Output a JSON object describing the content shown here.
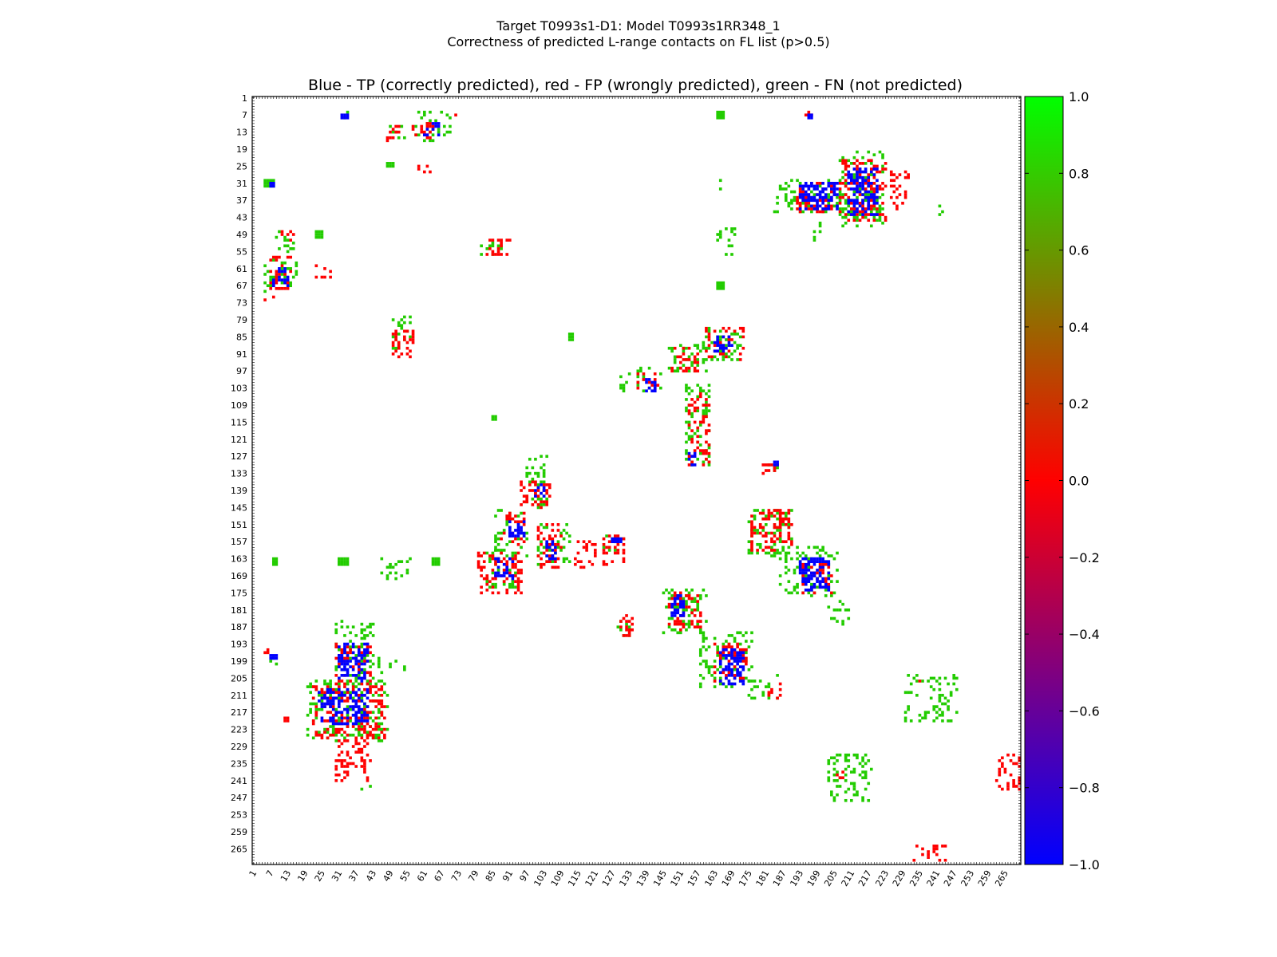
{
  "figure": {
    "title_line1": "Target T0993s1-D1: Model T0993s1RR348_1",
    "title_line2": "Correctness of predicted L-range contacts on FL list (p>0.5)"
  },
  "chart_data": {
    "type": "heatmap",
    "title": "Blue - TP (correctly predicted), red - FP (wrongly predicted), green - FN (not predicted)",
    "xlabel": "",
    "ylabel": "",
    "xlim": [
      1,
      270
    ],
    "ylim": [
      1,
      270
    ],
    "y_inverted": true,
    "x_tick_labels": [
      "1",
      "7",
      "13",
      "19",
      "25",
      "31",
      "37",
      "43",
      "49",
      "55",
      "61",
      "67",
      "73",
      "79",
      "85",
      "91",
      "97",
      "103",
      "109",
      "115",
      "121",
      "127",
      "133",
      "139",
      "145",
      "151",
      "157",
      "163",
      "169",
      "175",
      "181",
      "187",
      "193",
      "199",
      "205",
      "211",
      "217",
      "223",
      "229",
      "235",
      "241",
      "247",
      "253",
      "259",
      "265"
    ],
    "y_tick_labels": [
      "1",
      "7",
      "13",
      "19",
      "25",
      "31",
      "37",
      "43",
      "49",
      "55",
      "61",
      "67",
      "73",
      "79",
      "85",
      "91",
      "97",
      "103",
      "109",
      "115",
      "121",
      "127",
      "133",
      "139",
      "145",
      "151",
      "157",
      "163",
      "169",
      "175",
      "181",
      "187",
      "193",
      "199",
      "205",
      "211",
      "217",
      "223",
      "229",
      "235",
      "241",
      "247",
      "253",
      "259",
      "265"
    ],
    "colorbar": {
      "min": -1.0,
      "max": 1.0,
      "tick_labels": [
        "1.0",
        "0.8",
        "0.6",
        "0.4",
        "0.2",
        "0.0",
        "−0.2",
        "−0.4",
        "−0.6",
        "−0.8",
        "−1.0"
      ],
      "colors": [
        "#0000ff",
        "#ff0000",
        "#00ff00"
      ]
    },
    "legend": {
      "TP": "#0000ff",
      "FP": "#ff0000",
      "FN": "#22cc00"
    },
    "clusters": [
      {
        "cls": "FN",
        "r": [
          5,
          8
        ],
        "c": [
          32,
          35
        ]
      },
      {
        "cls": "TP",
        "r": [
          7,
          8
        ],
        "c": [
          32,
          34
        ]
      },
      {
        "cls": "FP",
        "r": [
          11,
          16
        ],
        "c": [
          48,
          52
        ]
      },
      {
        "cls": "FN",
        "r": [
          11,
          16
        ],
        "c": [
          49,
          55
        ]
      },
      {
        "cls": "FP",
        "r": [
          10,
          15
        ],
        "c": [
          57,
          64
        ]
      },
      {
        "cls": "TP",
        "r": [
          10,
          14
        ],
        "c": [
          61,
          66
        ]
      },
      {
        "cls": "FN",
        "r": [
          6,
          16
        ],
        "c": [
          58,
          70
        ]
      },
      {
        "cls": "FP",
        "r": [
          5,
          8
        ],
        "c": [
          71,
          73
        ]
      },
      {
        "cls": "FP",
        "r": [
          24,
          27
        ],
        "c": [
          59,
          63
        ]
      },
      {
        "cls": "FN",
        "r": [
          24,
          25
        ],
        "c": [
          48,
          50
        ]
      },
      {
        "cls": "FN",
        "r": [
          30,
          32
        ],
        "c": [
          5,
          8
        ]
      },
      {
        "cls": "TP",
        "r": [
          31,
          32
        ],
        "c": [
          7,
          8
        ]
      },
      {
        "cls": "FP",
        "r": [
          48,
          51
        ],
        "c": [
          11,
          15
        ]
      },
      {
        "cls": "FN",
        "r": [
          48,
          55
        ],
        "c": [
          9,
          16
        ]
      },
      {
        "cls": "FN",
        "r": [
          48,
          50
        ],
        "c": [
          23,
          25
        ]
      },
      {
        "cls": "FP",
        "r": [
          57,
          68
        ],
        "c": [
          7,
          14
        ]
      },
      {
        "cls": "TP",
        "r": [
          61,
          67
        ],
        "c": [
          8,
          13
        ]
      },
      {
        "cls": "FN",
        "r": [
          58,
          69
        ],
        "c": [
          5,
          16
        ]
      },
      {
        "cls": "FP",
        "r": [
          60,
          64
        ],
        "c": [
          23,
          28
        ]
      },
      {
        "cls": "FP",
        "r": [
          71,
          72
        ],
        "c": [
          5,
          10
        ]
      },
      {
        "cls": "FP",
        "r": [
          51,
          56
        ],
        "c": [
          83,
          91
        ]
      },
      {
        "cls": "FN",
        "r": [
          52,
          56
        ],
        "c": [
          80,
          88
        ]
      },
      {
        "cls": "FP",
        "r": [
          83,
          92
        ],
        "c": [
          50,
          57
        ]
      },
      {
        "cls": "FN",
        "r": [
          78,
          90
        ],
        "c": [
          50,
          56
        ]
      },
      {
        "cls": "FP",
        "r": [
          4,
          7
        ],
        "c": [
          195,
          197
        ]
      },
      {
        "cls": "TP",
        "r": [
          7,
          8
        ],
        "c": [
          196,
          197
        ]
      },
      {
        "cls": "FN",
        "r": [
          6,
          8
        ],
        "c": [
          164,
          166
        ]
      },
      {
        "cls": "FN",
        "r": [
          30,
          33
        ],
        "c": [
          164,
          165
        ]
      },
      {
        "cls": "FP",
        "r": [
          31,
          41
        ],
        "c": [
          192,
          207
        ]
      },
      {
        "cls": "TP",
        "r": [
          31,
          40
        ],
        "c": [
          193,
          206
        ]
      },
      {
        "cls": "FN",
        "r": [
          30,
          41
        ],
        "c": [
          184,
          209
        ]
      },
      {
        "cls": "FP",
        "r": [
          23,
          44
        ],
        "c": [
          208,
          223
        ]
      },
      {
        "cls": "TP",
        "r": [
          26,
          42
        ],
        "c": [
          210,
          220
        ]
      },
      {
        "cls": "FN",
        "r": [
          20,
          46
        ],
        "c": [
          207,
          222
        ]
      },
      {
        "cls": "FP",
        "r": [
          27,
          40
        ],
        "c": [
          225,
          231
        ]
      },
      {
        "cls": "FN",
        "r": [
          39,
          42
        ],
        "c": [
          242,
          243
        ]
      },
      {
        "cls": "FN",
        "r": [
          47,
          56
        ],
        "c": [
          164,
          170
        ]
      },
      {
        "cls": "FN",
        "r": [
          45,
          55
        ],
        "c": [
          198,
          202
        ]
      },
      {
        "cls": "FN",
        "r": [
          66,
          68
        ],
        "c": [
          164,
          166
        ]
      },
      {
        "cls": "FP",
        "r": [
          82,
          93
        ],
        "c": [
          160,
          173
        ]
      },
      {
        "cls": "TP",
        "r": [
          85,
          90
        ],
        "c": [
          163,
          169
        ]
      },
      {
        "cls": "FN",
        "r": [
          82,
          93
        ],
        "c": [
          159,
          172
        ]
      },
      {
        "cls": "FP",
        "r": [
          89,
          97
        ],
        "c": [
          148,
          157
        ]
      },
      {
        "cls": "FN",
        "r": [
          88,
          97
        ],
        "c": [
          147,
          160
        ]
      },
      {
        "cls": "FP",
        "r": [
          98,
          104
        ],
        "c": [
          136,
          143
        ]
      },
      {
        "cls": "TP",
        "r": [
          100,
          104
        ],
        "c": [
          138,
          142
        ]
      },
      {
        "cls": "FN",
        "r": [
          96,
          104
        ],
        "c": [
          130,
          144
        ]
      },
      {
        "cls": "FP",
        "r": [
          105,
          130
        ],
        "c": [
          154,
          161
        ]
      },
      {
        "cls": "TP",
        "r": [
          126,
          130
        ],
        "c": [
          154,
          156
        ]
      },
      {
        "cls": "FN",
        "r": [
          102,
          130
        ],
        "c": [
          153,
          161
        ]
      },
      {
        "cls": "FN",
        "r": [
          84,
          86
        ],
        "c": [
          112,
          113
        ]
      },
      {
        "cls": "FN",
        "r": [
          113,
          114
        ],
        "c": [
          85,
          86
        ]
      },
      {
        "cls": "FP",
        "r": [
          130,
          133
        ],
        "c": [
          180,
          185
        ]
      },
      {
        "cls": "FN",
        "r": [
          129,
          132
        ],
        "c": [
          182,
          186
        ]
      },
      {
        "cls": "TP",
        "r": [
          129,
          130
        ],
        "c": [
          184,
          185
        ]
      },
      {
        "cls": "FP",
        "r": [
          136,
          145
        ],
        "c": [
          95,
          105
        ]
      },
      {
        "cls": "TP",
        "r": [
          137,
          141
        ],
        "c": [
          100,
          103
        ]
      },
      {
        "cls": "FN",
        "r": [
          127,
          145
        ],
        "c": [
          97,
          104
        ]
      },
      {
        "cls": "FP",
        "r": [
          147,
          159
        ],
        "c": [
          88,
          96
        ]
      },
      {
        "cls": "TP",
        "r": [
          150,
          155
        ],
        "c": [
          91,
          96
        ]
      },
      {
        "cls": "FN",
        "r": [
          146,
          162
        ],
        "c": [
          85,
          97
        ]
      },
      {
        "cls": "FP",
        "r": [
          151,
          166
        ],
        "c": [
          101,
          109
        ]
      },
      {
        "cls": "TP",
        "r": [
          156,
          163
        ],
        "c": [
          104,
          107
        ]
      },
      {
        "cls": "FN",
        "r": [
          151,
          166
        ],
        "c": [
          101,
          112
        ]
      },
      {
        "cls": "FP",
        "r": [
          157,
          166
        ],
        "c": [
          114,
          121
        ]
      },
      {
        "cls": "FP",
        "r": [
          155,
          166
        ],
        "c": [
          124,
          131
        ]
      },
      {
        "cls": "TP",
        "r": [
          156,
          157
        ],
        "c": [
          127,
          130
        ]
      },
      {
        "cls": "FN",
        "r": [
          155,
          160
        ],
        "c": [
          124,
          131
        ]
      },
      {
        "cls": "FP",
        "r": [
          146,
          160
        ],
        "c": [
          176,
          190
        ]
      },
      {
        "cls": "FN",
        "r": [
          146,
          162
        ],
        "c": [
          175,
          190
        ]
      },
      {
        "cls": "TP",
        "r": [
          163,
          174
        ],
        "c": [
          193,
          203
        ]
      },
      {
        "cls": "FP",
        "r": [
          164,
          175
        ],
        "c": [
          194,
          204
        ]
      },
      {
        "cls": "FN",
        "r": [
          159,
          176
        ],
        "c": [
          186,
          206
        ]
      },
      {
        "cls": "FN",
        "r": [
          178,
          186
        ],
        "c": [
          203,
          210
        ]
      },
      {
        "cls": "FP",
        "r": [
          161,
          175
        ],
        "c": [
          80,
          95
        ]
      },
      {
        "cls": "TP",
        "r": [
          163,
          170
        ],
        "c": [
          86,
          92
        ]
      },
      {
        "cls": "FN",
        "r": [
          160,
          173
        ],
        "c": [
          83,
          94
        ]
      },
      {
        "cls": "FN",
        "r": [
          163,
          170
        ],
        "c": [
          46,
          56
        ]
      },
      {
        "cls": "FN",
        "r": [
          163,
          165
        ],
        "c": [
          8,
          9
        ]
      },
      {
        "cls": "FN",
        "r": [
          163,
          165
        ],
        "c": [
          31,
          34
        ]
      },
      {
        "cls": "FN",
        "r": [
          163,
          165
        ],
        "c": [
          64,
          66
        ]
      },
      {
        "cls": "FP",
        "r": [
          175,
          188
        ],
        "c": [
          147,
          158
        ]
      },
      {
        "cls": "TP",
        "r": [
          176,
          183
        ],
        "c": [
          148,
          152
        ]
      },
      {
        "cls": "FN",
        "r": [
          174,
          189
        ],
        "c": [
          145,
          160
        ]
      },
      {
        "cls": "FP",
        "r": [
          183,
          190
        ],
        "c": [
          130,
          134
        ]
      },
      {
        "cls": "FN",
        "r": [
          185,
          190
        ],
        "c": [
          129,
          133
        ]
      },
      {
        "cls": "FP",
        "r": [
          193,
          206
        ],
        "c": [
          163,
          174
        ]
      },
      {
        "cls": "TP",
        "r": [
          195,
          207
        ],
        "c": [
          165,
          173
        ]
      },
      {
        "cls": "FN",
        "r": [
          189,
          208
        ],
        "c": [
          158,
          176
        ]
      },
      {
        "cls": "FP",
        "r": [
          206,
          212
        ],
        "c": [
          182,
          186
        ]
      },
      {
        "cls": "FN",
        "r": [
          204,
          212
        ],
        "c": [
          174,
          185
        ]
      },
      {
        "cls": "FP",
        "r": [
          193,
          207
        ],
        "c": [
          30,
          42
        ]
      },
      {
        "cls": "TP",
        "r": [
          193,
          206
        ],
        "c": [
          31,
          41
        ]
      },
      {
        "cls": "FN",
        "r": [
          185,
          207
        ],
        "c": [
          30,
          43
        ]
      },
      {
        "cls": "FN",
        "r": [
          198,
          203
        ],
        "c": [
          45,
          54
        ]
      },
      {
        "cls": "FP",
        "r": [
          195,
          198
        ],
        "c": [
          5,
          6
        ]
      },
      {
        "cls": "TP",
        "r": [
          197,
          198
        ],
        "c": [
          7,
          9
        ]
      },
      {
        "cls": "FN",
        "r": [
          197,
          200
        ],
        "c": [
          7,
          9
        ]
      },
      {
        "cls": "FP",
        "r": [
          208,
          226
        ],
        "c": [
          22,
          47
        ]
      },
      {
        "cls": "TP",
        "r": [
          209,
          221
        ],
        "c": [
          24,
          41
        ]
      },
      {
        "cls": "FN",
        "r": [
          206,
          227
        ],
        "c": [
          20,
          48
        ]
      },
      {
        "cls": "FP",
        "r": [
          219,
          220
        ],
        "c": [
          12,
          13
        ]
      },
      {
        "cls": "FP",
        "r": [
          227,
          241
        ],
        "c": [
          30,
          42
        ]
      },
      {
        "cls": "FN",
        "r": [
          243,
          244
        ],
        "c": [
          39,
          43
        ]
      },
      {
        "cls": "FN",
        "r": [
          204,
          220
        ],
        "c": [
          230,
          248
        ]
      },
      {
        "cls": "FP",
        "r": [
          204,
          210
        ],
        "c": [
          234,
          235
        ]
      },
      {
        "cls": "FN",
        "r": [
          232,
          248
        ],
        "c": [
          203,
          218
        ]
      },
      {
        "cls": "FP",
        "r": [
          238,
          240
        ],
        "c": [
          204,
          209
        ]
      },
      {
        "cls": "FP",
        "r": [
          232,
          244
        ],
        "c": [
          262,
          270
        ]
      },
      {
        "cls": "FP",
        "r": [
          263,
          269
        ],
        "c": [
          233,
          244
        ]
      }
    ]
  }
}
